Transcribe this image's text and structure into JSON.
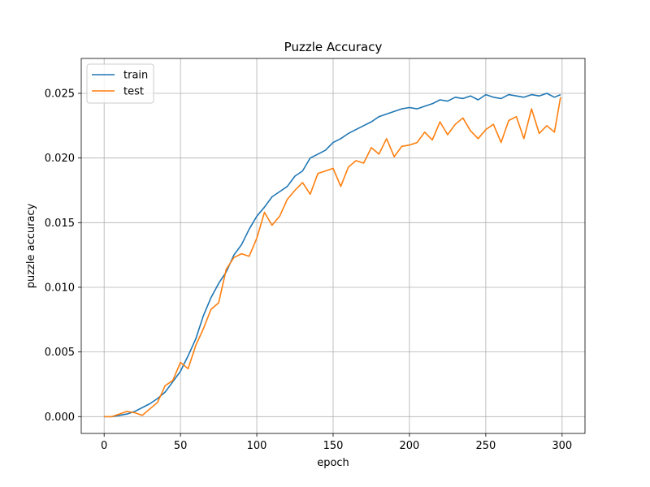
{
  "chart_data": {
    "type": "line",
    "title": "Puzzle Accuracy",
    "xlabel": "epoch",
    "ylabel": "puzzle accuracy",
    "xlim": [
      -15,
      315
    ],
    "ylim": [
      -0.0013,
      0.0277
    ],
    "xticks": [
      0,
      50,
      100,
      150,
      200,
      250,
      300
    ],
    "xtick_labels": [
      "0",
      "50",
      "100",
      "150",
      "200",
      "250",
      "300"
    ],
    "yticks": [
      0.0,
      0.005,
      0.01,
      0.015,
      0.02,
      0.025
    ],
    "ytick_labels": [
      "0.000",
      "0.005",
      "0.010",
      "0.015",
      "0.020",
      "0.025"
    ],
    "grid": true,
    "legend_position": "upper-left",
    "series": [
      {
        "name": "train",
        "color": "#1f77b4",
        "x": [
          0,
          5,
          10,
          15,
          20,
          25,
          30,
          35,
          40,
          45,
          50,
          55,
          60,
          65,
          70,
          75,
          80,
          85,
          90,
          95,
          100,
          105,
          110,
          115,
          120,
          125,
          130,
          135,
          140,
          145,
          150,
          155,
          160,
          165,
          170,
          175,
          180,
          185,
          190,
          195,
          200,
          205,
          210,
          215,
          220,
          225,
          230,
          235,
          240,
          245,
          250,
          255,
          260,
          265,
          270,
          275,
          280,
          285,
          290,
          295,
          299
        ],
        "y": [
          0.0,
          0.0,
          0.0001,
          0.0002,
          0.0004,
          0.0007,
          0.001,
          0.0014,
          0.0019,
          0.0027,
          0.0035,
          0.0047,
          0.006,
          0.0078,
          0.0092,
          0.0103,
          0.0112,
          0.0125,
          0.0133,
          0.0145,
          0.0155,
          0.0162,
          0.017,
          0.0174,
          0.0178,
          0.0186,
          0.019,
          0.02,
          0.0203,
          0.0206,
          0.0212,
          0.0215,
          0.0219,
          0.0222,
          0.0225,
          0.0228,
          0.0232,
          0.0234,
          0.0236,
          0.0238,
          0.0239,
          0.0238,
          0.024,
          0.0242,
          0.0245,
          0.0244,
          0.0247,
          0.0246,
          0.0248,
          0.0245,
          0.0249,
          0.0247,
          0.0246,
          0.0249,
          0.0248,
          0.0247,
          0.0249,
          0.0248,
          0.025,
          0.0247,
          0.0249
        ]
      },
      {
        "name": "test",
        "color": "#ff7f0e",
        "x": [
          0,
          5,
          10,
          15,
          20,
          25,
          30,
          35,
          40,
          45,
          50,
          55,
          60,
          65,
          70,
          75,
          80,
          85,
          90,
          95,
          100,
          105,
          110,
          115,
          120,
          125,
          130,
          135,
          140,
          145,
          150,
          155,
          160,
          165,
          170,
          175,
          180,
          185,
          190,
          195,
          200,
          205,
          210,
          215,
          220,
          225,
          230,
          235,
          240,
          245,
          250,
          255,
          260,
          265,
          270,
          275,
          280,
          285,
          290,
          295,
          299
        ],
        "y": [
          0.0,
          0.0,
          0.0002,
          0.0004,
          0.0003,
          0.0001,
          0.0006,
          0.0011,
          0.0024,
          0.0028,
          0.0042,
          0.0037,
          0.0055,
          0.0068,
          0.0083,
          0.0088,
          0.0114,
          0.0123,
          0.0126,
          0.0124,
          0.0138,
          0.0158,
          0.0148,
          0.0155,
          0.0168,
          0.0175,
          0.0181,
          0.0172,
          0.0188,
          0.019,
          0.0192,
          0.0178,
          0.0193,
          0.0198,
          0.0196,
          0.0208,
          0.0203,
          0.0215,
          0.0201,
          0.0209,
          0.021,
          0.0212,
          0.022,
          0.0214,
          0.0228,
          0.0218,
          0.0226,
          0.0231,
          0.0221,
          0.0215,
          0.0222,
          0.0226,
          0.0212,
          0.0229,
          0.0232,
          0.0215,
          0.0238,
          0.0219,
          0.0225,
          0.022,
          0.0247
        ]
      }
    ]
  }
}
